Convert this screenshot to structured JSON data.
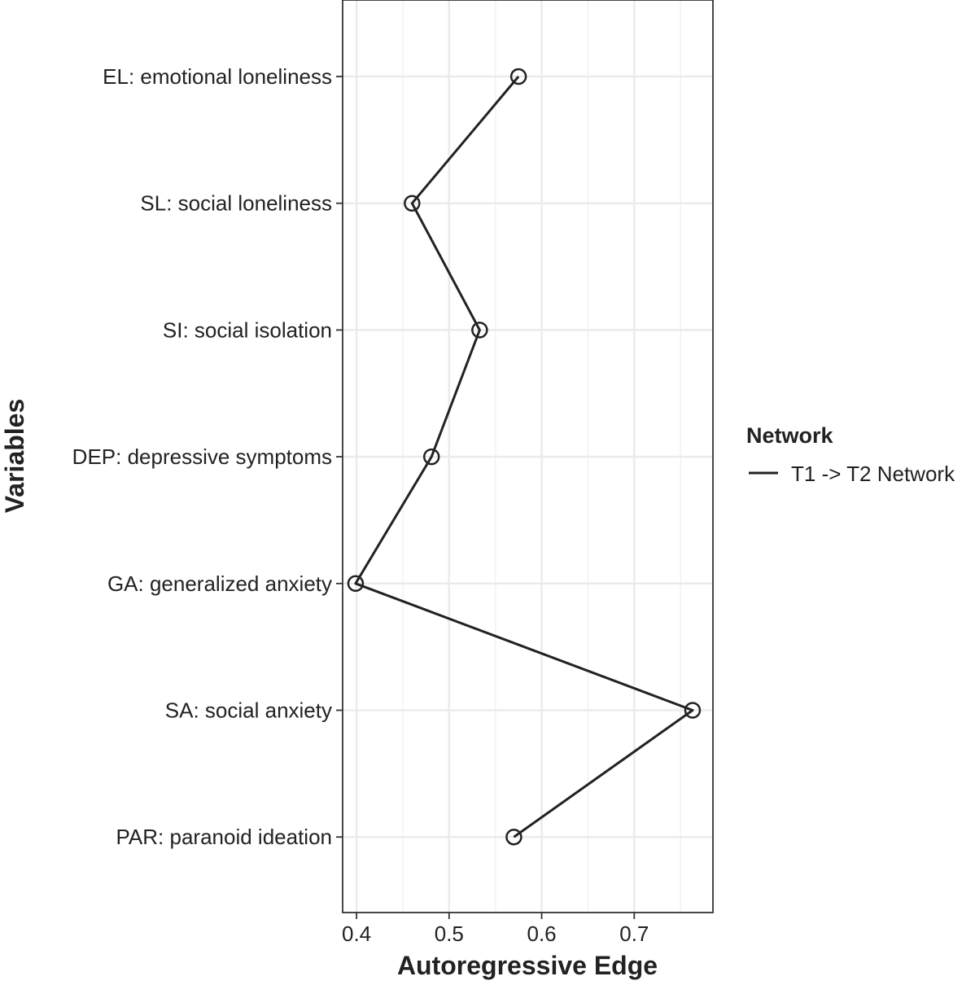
{
  "chart_data": {
    "type": "line",
    "xlabel": "Autoregressive Edge",
    "ylabel": "Variables",
    "xlim": [
      0.385,
      0.785
    ],
    "xticks": [
      "0.4",
      "0.5",
      "0.6",
      "0.7"
    ],
    "grid": true,
    "legend": {
      "title": "Network",
      "position": "right"
    },
    "categories": [
      "EL: emotional loneliness",
      "SL: social loneliness",
      "SI: social isolation",
      "DEP: depressive symptoms",
      "GA: generalized anxiety",
      "SA: social anxiety",
      "PAR: paranoid ideation"
    ],
    "series": [
      {
        "name": "T1 -> T2 Network",
        "values": [
          0.575,
          0.46,
          0.533,
          0.481,
          0.399,
          0.763,
          0.57
        ]
      }
    ]
  }
}
